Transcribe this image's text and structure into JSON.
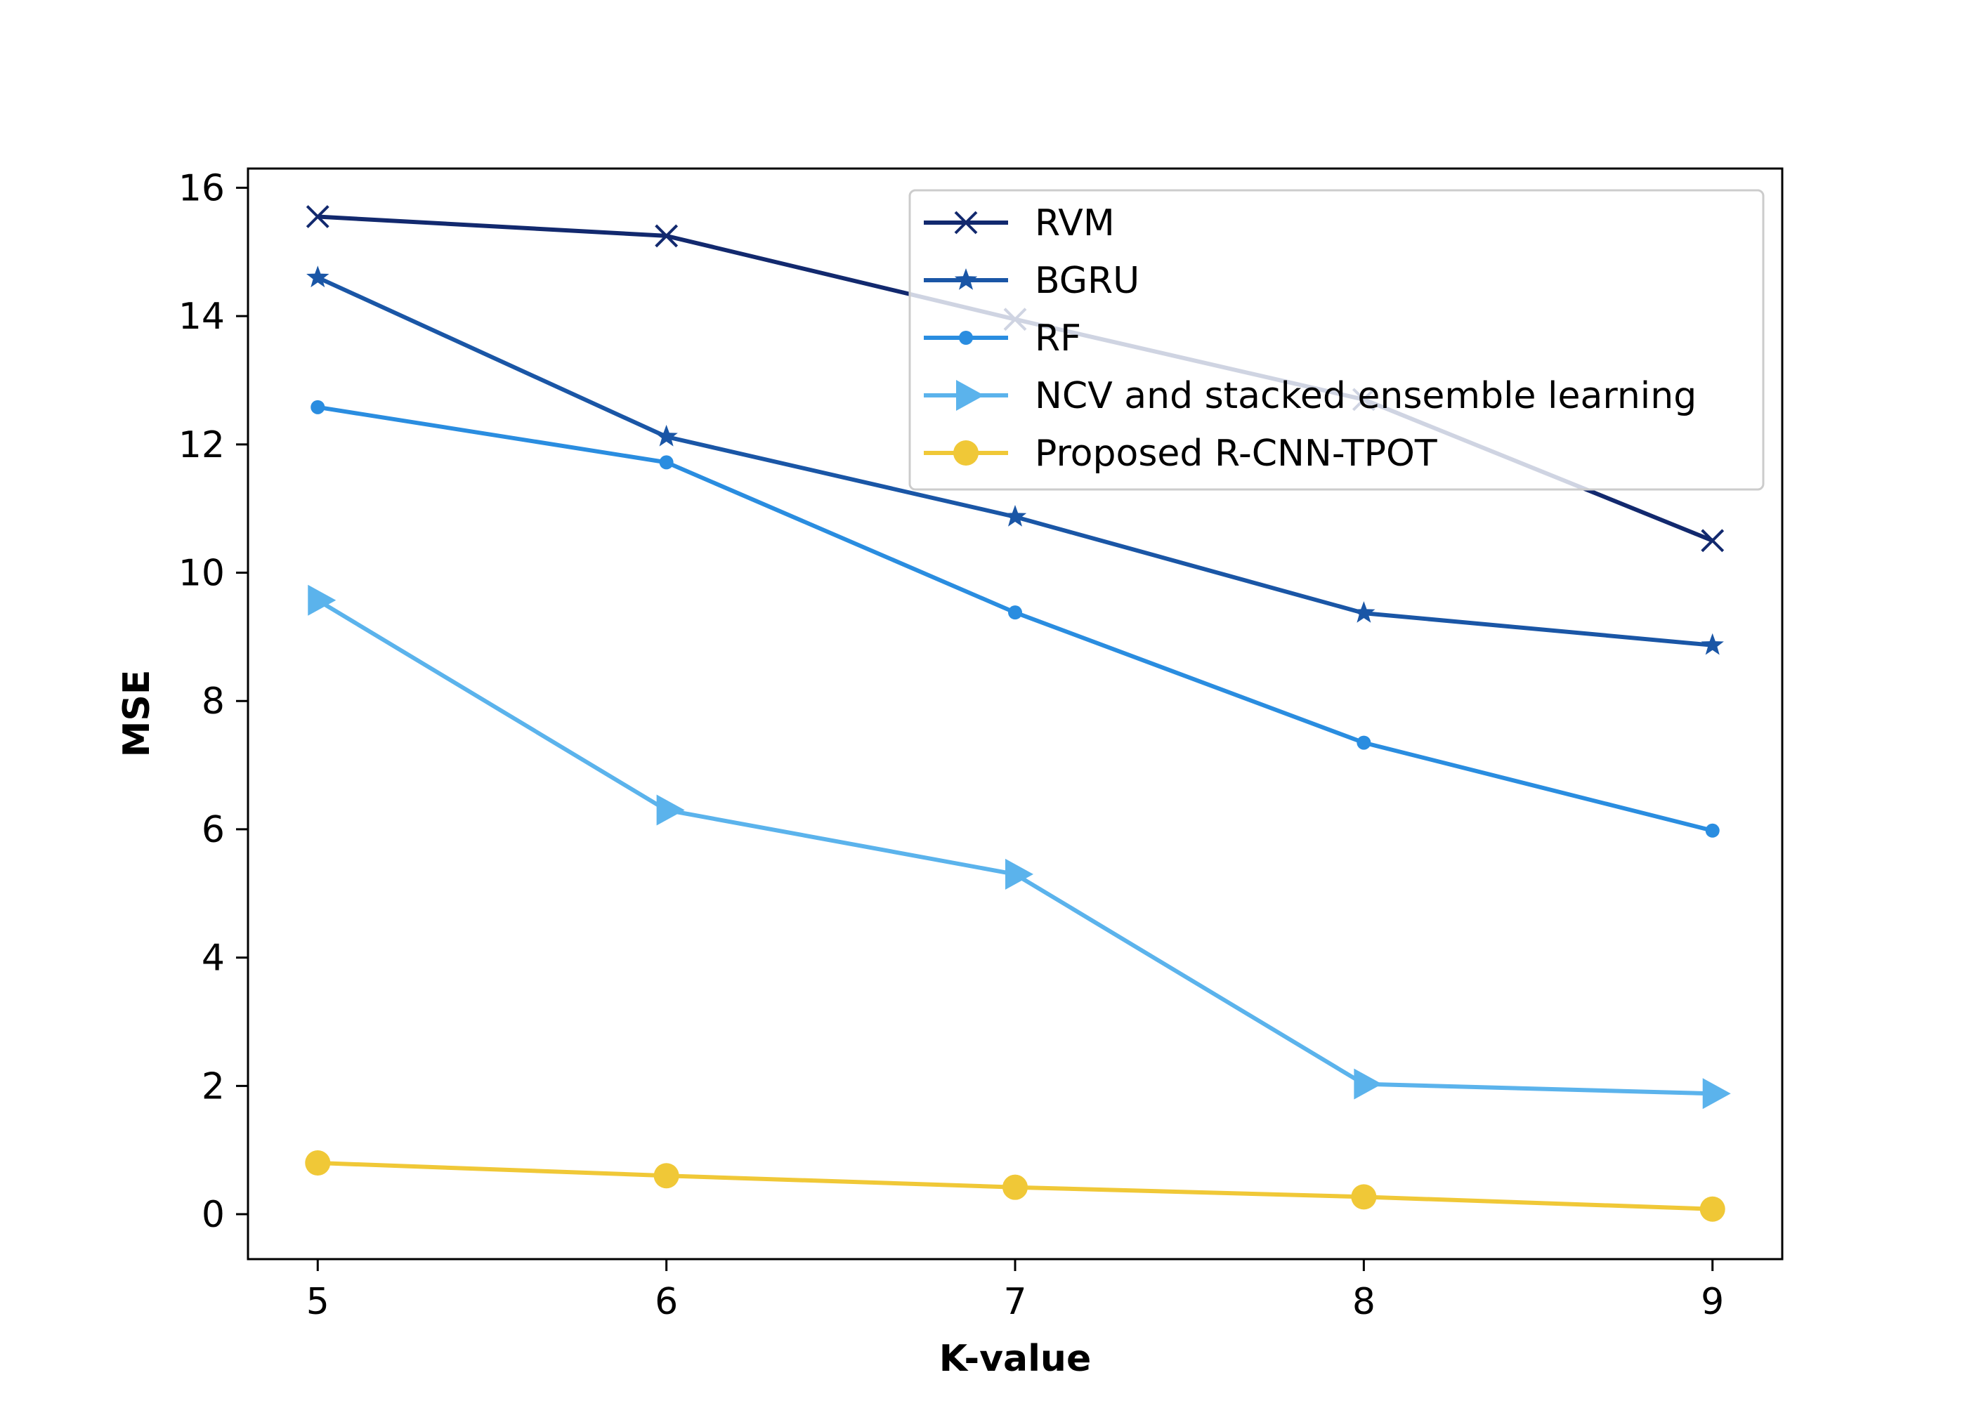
{
  "chart_data": {
    "type": "line",
    "title": "",
    "xlabel": "K-value",
    "ylabel": "MSE",
    "x": [
      5,
      6,
      7,
      8,
      9
    ],
    "xlim": [
      4.8,
      9.2
    ],
    "ylim": [
      -0.7,
      16.3
    ],
    "xticks": [
      "5",
      "6",
      "7",
      "8",
      "9"
    ],
    "yticks": [
      "0",
      "2",
      "4",
      "6",
      "8",
      "10",
      "12",
      "14",
      "16"
    ],
    "grid": false,
    "legend_position": "top-right",
    "series": [
      {
        "name": "RVM",
        "color": "#12296e",
        "marker": "x",
        "values": [
          15.55,
          15.25,
          13.95,
          12.7,
          10.5
        ]
      },
      {
        "name": "BGRU",
        "color": "#1a56a6",
        "marker": "star",
        "values": [
          14.6,
          12.12,
          10.87,
          9.37,
          8.87
        ]
      },
      {
        "name": "RF",
        "color": "#2a8de0",
        "marker": "dot",
        "values": [
          12.58,
          11.72,
          9.38,
          7.35,
          5.98
        ]
      },
      {
        "name": "NCV and stacked ensemble learning",
        "color": "#5bb3ec",
        "marker": "triangle-right",
        "values": [
          9.57,
          6.3,
          5.3,
          2.03,
          1.88
        ]
      },
      {
        "name": "Proposed R-CNN-TPOT",
        "color": "#f0c837",
        "marker": "circle",
        "values": [
          0.8,
          0.6,
          0.42,
          0.27,
          0.08
        ]
      }
    ]
  }
}
